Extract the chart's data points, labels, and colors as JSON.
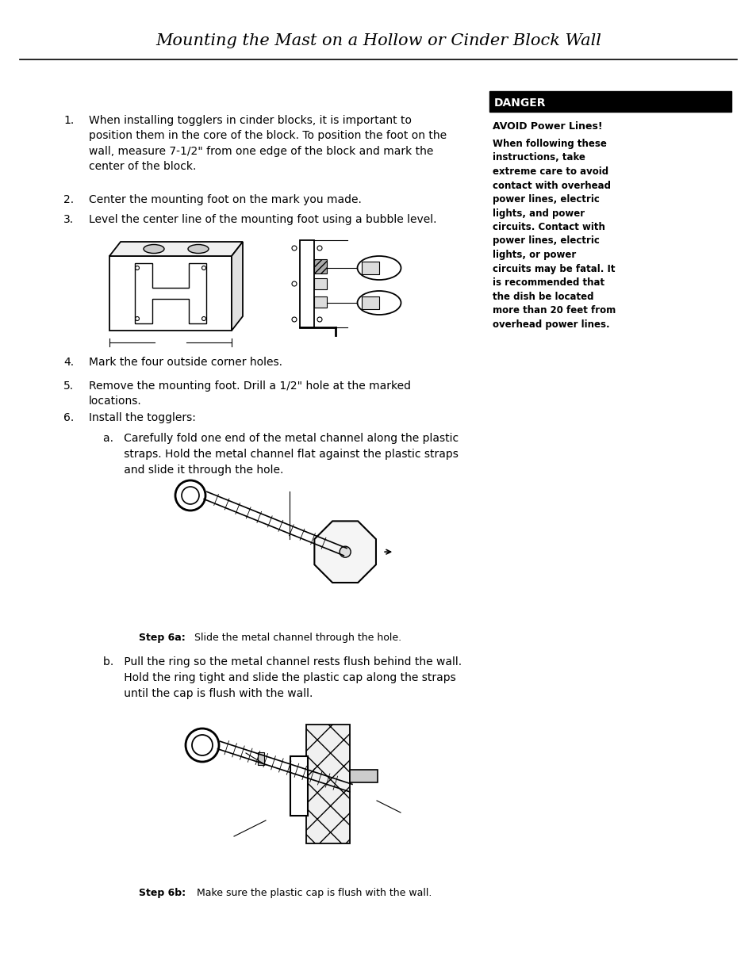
{
  "title": "Mounting the Mast on a Hollow or Cinder Block Wall",
  "bg_color": "#ffffff",
  "danger_label": "DANGER",
  "avoid_text": "AVOID Power Lines!",
  "danger_paragraph": "When following these\ninstructions, take\nextreme care to avoid\ncontact with overhead\npower lines, electric\nlights, and power\ncircuits. Contact with\npower lines, electric\nlights, or power\ncircuits may be fatal. It\nis recommended that\nthe dish be located\nmore than 20 feet from\noverhead power lines.",
  "step1": "When installing togglers in cinder blocks, it is important to\nposition them in the core of the block. To position the foot on the\nwall, measure 7-1/2\" from one edge of the block and mark the\ncenter of the block.",
  "step2": "Center the mounting foot on the mark you made.",
  "step3": "Level the center line of the mounting foot using a bubble level.",
  "step4": "Mark the four outside corner holes.",
  "step5": "Remove the mounting foot. Drill a 1/2\" hole at the marked\nlocations.",
  "step6": "Install the togglers:",
  "step6a_label": "Step 6a:",
  "step6a_text": "Slide the metal channel through the hole.",
  "step6a_sub_a": "a.   Carefully fold one end of the metal channel along the plastic",
  "step6a_sub_b": "      straps. Hold the metal channel flat against the plastic straps",
  "step6a_sub_c": "      and slide it through the hole.",
  "step6b_label": "Step 6b:",
  "step6b_text": "Make sure the plastic cap is flush with the wall.",
  "step6b_sub_a": "b.   Pull the ring so the metal channel rests flush behind the wall.",
  "step6b_sub_b": "      Hold the ring tight and slide the plastic cap along the straps",
  "step6b_sub_c": "      until the cap is flush with the wall."
}
